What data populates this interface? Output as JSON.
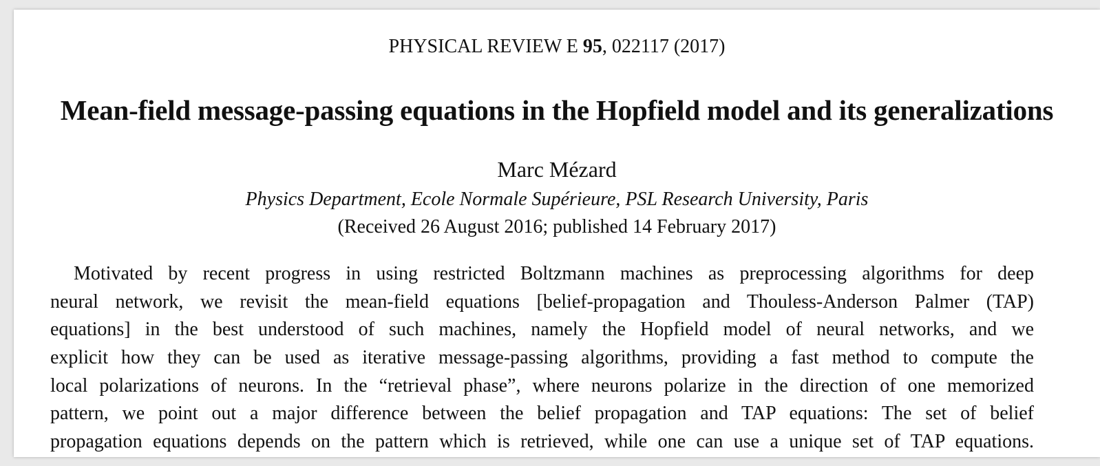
{
  "header": {
    "journal": "PHYSICAL REVIEW E",
    "volume": "95",
    "citation": ", 022117 (2017)"
  },
  "title": "Mean-field message-passing equations in the Hopfield model and its generalizations",
  "author": "Marc Mézard",
  "affiliation": "Physics Department, Ecole Normale Supérieure, PSL Research University, Paris",
  "dates": "(Received 26 August 2016; published 14 February 2017)",
  "abstract": {
    "lines": [
      "Motivated by recent progress in using restricted Boltzmann machines as preprocessing algorithms for deep",
      "neural network, we revisit the mean-field equations [belief-propagation and Thouless-Anderson Palmer (TAP)",
      "equations] in the best understood of such machines, namely the Hopfield model of neural networks, and we",
      "explicit how they can be used as iterative message-passing algorithms, providing a fast method to compute the",
      "local polarizations of neurons. In the “retrieval phase”, where neurons polarize in the direction of one memorized",
      "pattern, we point out a major difference between the belief propagation and TAP equations: The set of belief",
      "propagation equations depends on the pattern which is retrieved, while one can use a unique set of TAP equations."
    ]
  }
}
